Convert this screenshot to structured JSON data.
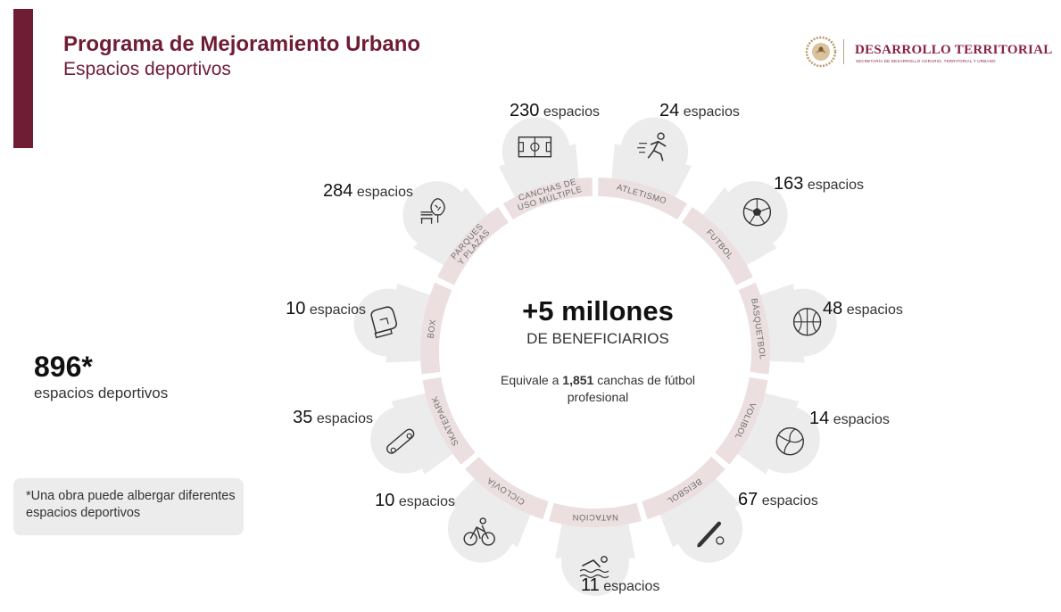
{
  "header": {
    "title": "Programa de Mejoramiento Urbano",
    "subtitle": "Espacios deportivos"
  },
  "logo": {
    "title": "DESARROLLO TERRITORIAL",
    "subtitle": "SECRETARÍA DE DESARROLLO AGRARIO, TERRITORIAL Y URBANO"
  },
  "total": {
    "value": "896*",
    "label": "espacios deportivos"
  },
  "note": "*Una obra puede albergar diferentes espacios deportivos",
  "center": {
    "main": "+5 millones",
    "sub": "DE BENEFICIARIOS",
    "equiv_prefix": "Equivale a ",
    "equiv_value": "1,851",
    "equiv_suffix": " canchas de fútbol profesional"
  },
  "unit": "espacios",
  "colors": {
    "brand": "#6f1d35",
    "ring": "#ecdfe0",
    "petal": "#ececec"
  },
  "chart_data": {
    "type": "radial",
    "categories": [
      {
        "lines": [
          "CANCHAS DE",
          "USO MÚLTIPLE"
        ],
        "count": "230",
        "icon": "soccer-field-icon"
      },
      {
        "lines": [
          "ATLETISMO"
        ],
        "count": "24",
        "icon": "runner-icon"
      },
      {
        "lines": [
          "FUTBOL"
        ],
        "count": "163",
        "icon": "soccer-ball-icon"
      },
      {
        "lines": [
          "BÁSQUETBOL"
        ],
        "count": "48",
        "icon": "basketball-icon"
      },
      {
        "lines": [
          "VOLIBOL"
        ],
        "count": "14",
        "icon": "volleyball-icon"
      },
      {
        "lines": [
          "BEISBOL"
        ],
        "count": "67",
        "icon": "baseball-bat-icon"
      },
      {
        "lines": [
          "NATACIÓN"
        ],
        "count": "11",
        "icon": "swimmer-icon"
      },
      {
        "lines": [
          "CICLOVÍA"
        ],
        "count": "10",
        "icon": "cyclist-icon"
      },
      {
        "lines": [
          "SKATEPARK"
        ],
        "count": "35",
        "icon": "skateboard-icon"
      },
      {
        "lines": [
          "BOX"
        ],
        "count": "10",
        "icon": "boxing-glove-icon"
      },
      {
        "lines": [
          "PARQUES",
          "Y PLAZAS"
        ],
        "count": "284",
        "icon": "park-bench-icon"
      }
    ]
  }
}
